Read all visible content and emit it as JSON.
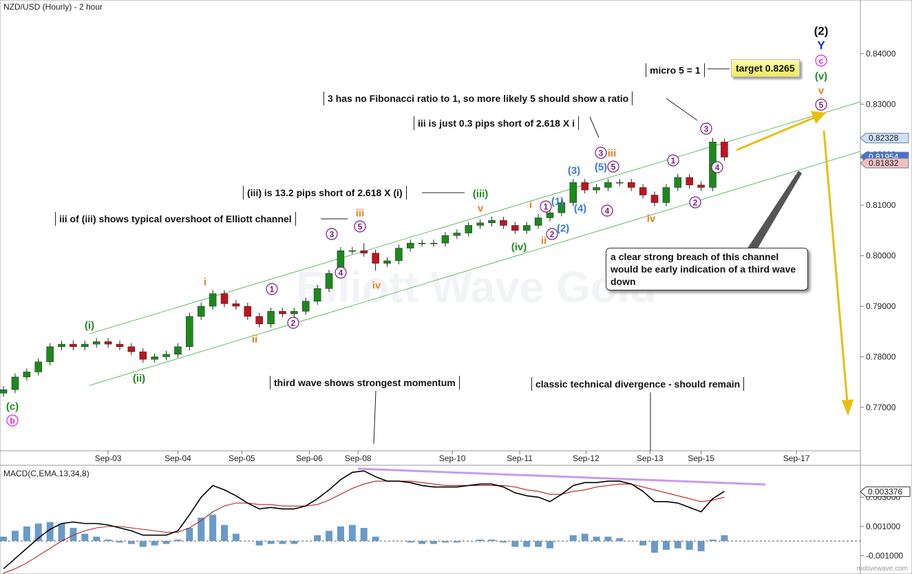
{
  "chart_data": [
    {
      "type": "candlestick",
      "title": "NZD/USD (Hourly) - 2 hour",
      "x": [
        0,
        1,
        2,
        3,
        4,
        5,
        6,
        7,
        8,
        9,
        10,
        11,
        12,
        13,
        14,
        15,
        16,
        17,
        18,
        19,
        20,
        21,
        22,
        23,
        24,
        25,
        26,
        27,
        28,
        29,
        30,
        31,
        32,
        33,
        34,
        35,
        36,
        37,
        38,
        39,
        40,
        41,
        42,
        43,
        44,
        45,
        46,
        47,
        48,
        49,
        50,
        51,
        52,
        53,
        54,
        55,
        56,
        57,
        58,
        59,
        60,
        61,
        62
      ],
      "open": [
        0.7728,
        0.7735,
        0.776,
        0.777,
        0.779,
        0.782,
        0.7825,
        0.782,
        0.7825,
        0.783,
        0.7825,
        0.782,
        0.781,
        0.7795,
        0.78,
        0.7805,
        0.782,
        0.788,
        0.79,
        0.7925,
        0.7905,
        0.79,
        0.788,
        0.7865,
        0.789,
        0.7885,
        0.789,
        0.791,
        0.7935,
        0.7965,
        0.801,
        0.801,
        0.8005,
        0.7985,
        0.799,
        0.8015,
        0.8025,
        0.8025,
        0.8025,
        0.804,
        0.8045,
        0.806,
        0.8065,
        0.807,
        0.806,
        0.805,
        0.806,
        0.8075,
        0.8085,
        0.8105,
        0.8145,
        0.813,
        0.8135,
        0.8145,
        0.8145,
        0.8135,
        0.812,
        0.8105,
        0.8135,
        0.8155,
        0.814,
        0.8135,
        0.8225
      ],
      "high": [
        0.7742,
        0.7767,
        0.7777,
        0.7797,
        0.7827,
        0.7832,
        0.7832,
        0.7832,
        0.7837,
        0.7837,
        0.7832,
        0.7827,
        0.7817,
        0.7807,
        0.7812,
        0.7827,
        0.7887,
        0.7907,
        0.7932,
        0.7932,
        0.7912,
        0.7907,
        0.7887,
        0.7897,
        0.7897,
        0.7897,
        0.7917,
        0.7942,
        0.7972,
        0.8017,
        0.8017,
        0.8025,
        0.8012,
        0.7997,
        0.8022,
        0.8032,
        0.8032,
        0.8032,
        0.8047,
        0.8052,
        0.8067,
        0.8072,
        0.8077,
        0.8077,
        0.8067,
        0.8067,
        0.8082,
        0.8092,
        0.8112,
        0.8152,
        0.8152,
        0.8142,
        0.8152,
        0.8152,
        0.8152,
        0.8142,
        0.8127,
        0.8142,
        0.8162,
        0.8162,
        0.8147,
        0.8233,
        0.8232
      ],
      "low": [
        0.7721,
        0.7728,
        0.7753,
        0.7763,
        0.7783,
        0.7813,
        0.7813,
        0.7813,
        0.7818,
        0.7818,
        0.7813,
        0.7803,
        0.7788,
        0.7788,
        0.7793,
        0.7798,
        0.7813,
        0.7873,
        0.7893,
        0.7898,
        0.7893,
        0.7873,
        0.7858,
        0.7858,
        0.7878,
        0.7878,
        0.7883,
        0.7903,
        0.7928,
        0.7958,
        0.8003,
        0.7998,
        0.797,
        0.7978,
        0.7983,
        0.8008,
        0.8018,
        0.8018,
        0.8018,
        0.8033,
        0.8038,
        0.8053,
        0.8058,
        0.8053,
        0.8043,
        0.8043,
        0.8053,
        0.8068,
        0.8078,
        0.8098,
        0.8123,
        0.8123,
        0.8128,
        0.8138,
        0.8128,
        0.8113,
        0.8098,
        0.8098,
        0.8128,
        0.8133,
        0.8128,
        0.8128,
        0.8188
      ],
      "close": [
        0.7735,
        0.776,
        0.777,
        0.779,
        0.782,
        0.7825,
        0.782,
        0.7825,
        0.783,
        0.7825,
        0.782,
        0.781,
        0.7795,
        0.78,
        0.7805,
        0.782,
        0.788,
        0.79,
        0.7925,
        0.7905,
        0.79,
        0.788,
        0.7865,
        0.789,
        0.7885,
        0.789,
        0.791,
        0.7935,
        0.7965,
        0.801,
        0.801,
        0.8005,
        0.7985,
        0.799,
        0.8015,
        0.8025,
        0.8025,
        0.8025,
        0.804,
        0.8045,
        0.806,
        0.8065,
        0.807,
        0.806,
        0.805,
        0.806,
        0.8075,
        0.8085,
        0.8105,
        0.8145,
        0.813,
        0.8135,
        0.8145,
        0.8145,
        0.8135,
        0.812,
        0.8105,
        0.8135,
        0.8155,
        0.814,
        0.8135,
        0.8225,
        0.8195
      ],
      "up_color": "#1b8a1b",
      "down_color": "#c0141e",
      "xlim": [
        -0.3,
        73.7
      ],
      "xticks": [
        {
          "value": 9.0,
          "label": "Sep-03"
        },
        {
          "value": 15.0,
          "label": "Sep-04"
        },
        {
          "value": 20.5,
          "label": "Sep-05"
        },
        {
          "value": 26.3,
          "label": "Sep-06"
        },
        {
          "value": 30.5,
          "label": "Sep-08"
        },
        {
          "value": 38.6,
          "label": "Sep-10"
        },
        {
          "value": 44.4,
          "label": "Sep-11"
        },
        {
          "value": 50.1,
          "label": "Sep-12"
        },
        {
          "value": 55.6,
          "label": "Sep-13"
        },
        {
          "value": 60.0,
          "label": "Sep-15"
        },
        {
          "value": 68.2,
          "label": "Sep-17"
        }
      ],
      "ylim": [
        0.7614,
        0.8506
      ],
      "yticks": [
        {
          "value": 0.77,
          "label": "0.77000"
        },
        {
          "value": 0.78,
          "label": "0.78000"
        },
        {
          "value": 0.79,
          "label": "0.79000"
        },
        {
          "value": 0.8,
          "label": "0.80000"
        },
        {
          "value": 0.81,
          "label": "0.81000"
        },
        {
          "value": 0.82,
          "label": "0.82000"
        },
        {
          "value": 0.83,
          "label": "0.83000"
        },
        {
          "value": 0.84,
          "label": "0.84000"
        }
      ],
      "price_tags": [
        0.82328,
        0.81954,
        0.81832
      ]
    },
    {
      "type": "macd",
      "title": "MACD(C,EMA,13,34,8)",
      "x": [
        0,
        1,
        2,
        3,
        4,
        5,
        6,
        7,
        8,
        9,
        10,
        11,
        12,
        13,
        14,
        15,
        16,
        17,
        18,
        19,
        20,
        21,
        22,
        23,
        24,
        25,
        26,
        27,
        28,
        29,
        30,
        31,
        32,
        33,
        34,
        35,
        36,
        37,
        38,
        39,
        40,
        41,
        42,
        43,
        44,
        45,
        46,
        47,
        48,
        49,
        50,
        51,
        52,
        53,
        54,
        55,
        56,
        57,
        58,
        59,
        60,
        61,
        62
      ],
      "macd": {
        "color": "#000000",
        "values": [
          -0.0019,
          -0.0012,
          -0.0005,
          0.0002,
          0.0008,
          0.0012,
          0.0013,
          0.0012,
          0.0012,
          0.0011,
          0.0009,
          0.0007,
          0.0004,
          0.0004,
          0.0004,
          0.0007,
          0.0018,
          0.003,
          0.0038,
          0.0035,
          0.0031,
          0.0026,
          0.0022,
          0.0023,
          0.0022,
          0.0022,
          0.0024,
          0.0029,
          0.0035,
          0.0042,
          0.0047,
          0.0048,
          0.0044,
          0.0041,
          0.0041,
          0.004,
          0.0038,
          0.0037,
          0.0037,
          0.0037,
          0.0038,
          0.0039,
          0.0039,
          0.0037,
          0.0033,
          0.0031,
          0.003,
          0.0027,
          0.0032,
          0.0038,
          0.004,
          0.004,
          0.0041,
          0.0041,
          0.0039,
          0.0034,
          0.0027,
          0.0027,
          0.0026,
          0.0023,
          0.002,
          0.0029,
          0.0034
        ]
      },
      "signal": {
        "color": "#b22222",
        "values": [
          -0.0022,
          -0.0019,
          -0.0015,
          -0.001,
          -0.0005,
          0.0,
          0.0004,
          0.0007,
          0.0009,
          0.001,
          0.001,
          0.0009,
          0.0008,
          0.0007,
          0.0006,
          0.0006,
          0.0009,
          0.0014,
          0.002,
          0.0024,
          0.0026,
          0.0026,
          0.0025,
          0.0025,
          0.0024,
          0.0024,
          0.0024,
          0.0025,
          0.0028,
          0.0032,
          0.0036,
          0.0039,
          0.0041,
          0.0041,
          0.0041,
          0.0041,
          0.004,
          0.0039,
          0.0038,
          0.0038,
          0.0038,
          0.0038,
          0.0038,
          0.0038,
          0.0037,
          0.0035,
          0.0034,
          0.0032,
          0.0032,
          0.0034,
          0.0035,
          0.0037,
          0.0038,
          0.0039,
          0.0039,
          0.0037,
          0.0035,
          0.0033,
          0.0031,
          0.0029,
          0.0027,
          0.0028,
          0.003
        ]
      },
      "histogram": {
        "color": "#6a9ac8",
        "values": [
          0.0003,
          0.0007,
          0.001,
          0.0012,
          0.0013,
          0.0012,
          0.0009,
          0.0005,
          0.0003,
          0.0001,
          -0.0001,
          -0.0002,
          -0.0004,
          -0.0003,
          -0.0002,
          0.0001,
          0.0009,
          0.0016,
          0.0018,
          0.0011,
          0.0005,
          0.0,
          -0.0003,
          -0.0002,
          -0.0002,
          -0.0002,
          0.0,
          0.0004,
          0.0007,
          0.001,
          0.0011,
          0.0009,
          0.0003,
          0.0,
          0.0,
          -0.0001,
          -0.0002,
          -0.0002,
          -0.0001,
          -0.0001,
          0.0,
          0.0001,
          0.0001,
          -0.0001,
          -0.0004,
          -0.0004,
          -0.0004,
          -0.0005,
          0.0,
          0.0004,
          0.0005,
          0.0003,
          0.0003,
          0.0002,
          0.0,
          -0.0003,
          -0.0008,
          -0.0006,
          -0.0005,
          -0.0006,
          -0.0007,
          0.0001,
          0.0004
        ]
      },
      "xlim": [
        -0.3,
        73.7
      ],
      "ylim": [
        -0.002256,
        0.005186
      ],
      "yticks": [
        {
          "value": 0.003,
          "label": "0.003000"
        },
        {
          "value": 0.001,
          "label": "0.001000"
        },
        {
          "value": -0.001,
          "label": "-0.001000"
        }
      ],
      "value_tag": 0.003376
    }
  ],
  "wave_labels": [
    "(c)",
    "b",
    "(i)",
    "(ii)",
    "i",
    "ii",
    "1",
    "2",
    "3",
    "4",
    "5",
    "iii",
    "iv",
    "(iii)",
    "v",
    "(iv)",
    "i",
    "ii",
    "1",
    "2",
    "(1)",
    "(2)",
    "(3)",
    "(4)",
    "(5)",
    "3",
    "iii",
    "5",
    "4",
    "iv",
    "1",
    "2",
    "3",
    "4",
    "(2)",
    "Y",
    "c",
    "(v)",
    "v",
    "5"
  ],
  "annotations": [
    "3 has no Fibonacci ratio to 1, so more likely 5 should show a ratio",
    "iii is just 0.3 pips short of 2.618 X i",
    "(iii) is 13.2 pips short of 2.618 X (i)",
    "iii of (iii) shows typical overshoot of Elliott channel",
    "micro 5 = 1",
    "target 0.8265",
    "a clear strong breach of this channel would be early indication of a third wave down",
    "third wave shows strongest momentum",
    "classic technical divergence - should remain"
  ],
  "watermark": "Elliott Wave Gold",
  "credit": "motivewave.com"
}
